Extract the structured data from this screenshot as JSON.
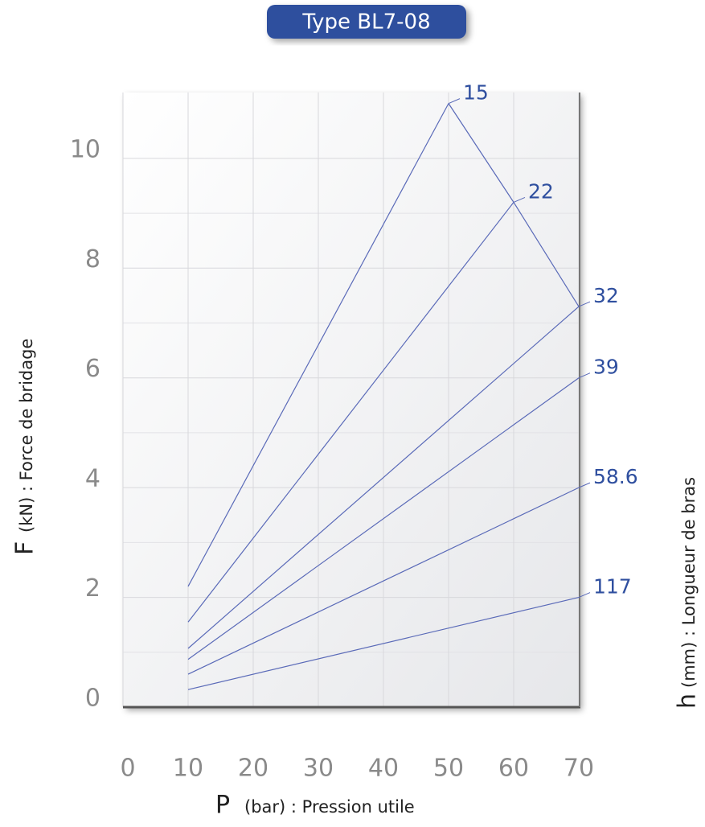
{
  "chart_data": {
    "type": "line",
    "title": "Type BL7-08",
    "x_label": {
      "symbol": "P",
      "text": "(bar) : Pression utile"
    },
    "y_label": {
      "symbol": "F",
      "text": "(kN) : Force de bridage"
    },
    "y2_label": {
      "symbol": "h",
      "text": "(mm) : Longueur de bras"
    },
    "xlim": [
      0,
      70
    ],
    "xticks": [
      0,
      10,
      20,
      30,
      40,
      50,
      60,
      70
    ],
    "ylim": [
      0,
      11.2
    ],
    "yticks": [
      0,
      2,
      4,
      6,
      8,
      10
    ],
    "grid": true,
    "series": [
      {
        "name": "15",
        "color": "#5a6ab8",
        "x": [
          10,
          50
        ],
        "values": [
          2.2,
          11.0
        ]
      },
      {
        "name": "22",
        "color": "#5a6ab8",
        "x": [
          10,
          60
        ],
        "values": [
          1.55,
          9.2
        ]
      },
      {
        "name": "32",
        "color": "#5a6ab8",
        "x": [
          10,
          70
        ],
        "values": [
          1.07,
          7.3
        ]
      },
      {
        "name": "39",
        "color": "#5a6ab8",
        "x": [
          10,
          70
        ],
        "values": [
          0.87,
          6.0
        ]
      },
      {
        "name": "58.6",
        "color": "#5a6ab8",
        "x": [
          10,
          70
        ],
        "values": [
          0.6,
          4.0
        ]
      },
      {
        "name": "117",
        "color": "#5a6ab8",
        "x": [
          10,
          70
        ],
        "values": [
          0.32,
          2.0
        ]
      }
    ]
  }
}
